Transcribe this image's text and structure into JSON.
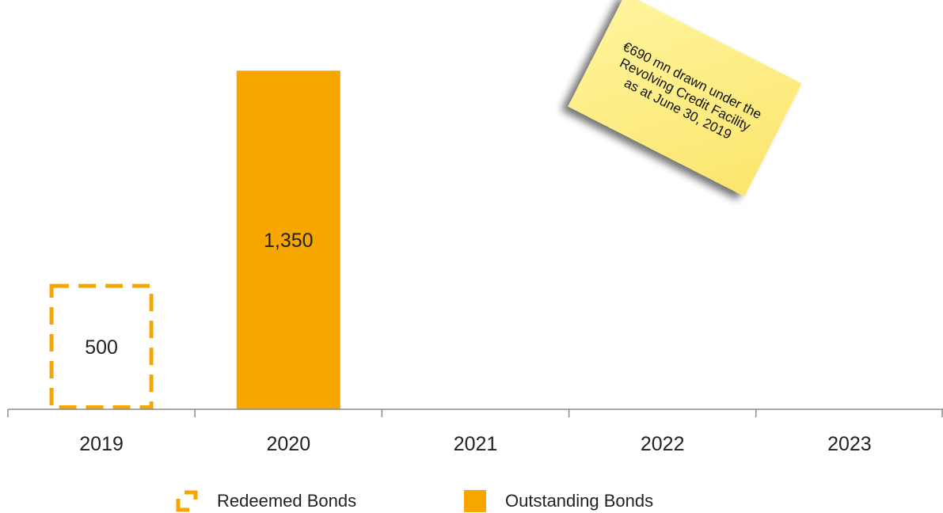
{
  "chart_data": {
    "type": "bar",
    "categories": [
      "2019",
      "2020",
      "2021",
      "2022",
      "2023"
    ],
    "series": [
      {
        "name": "Redeemed Bonds",
        "style": "dashed-outline",
        "color": "#f7a600",
        "values": [
          500,
          null,
          null,
          null,
          null
        ]
      },
      {
        "name": "Outstanding Bonds",
        "style": "solid",
        "color": "#f7a600",
        "values": [
          null,
          1350,
          null,
          null,
          null
        ]
      }
    ],
    "data_labels": [
      "500",
      "1,350"
    ],
    "title": "",
    "xlabel": "",
    "ylabel": "",
    "ylim": [
      0,
      1600
    ],
    "grid": false,
    "legend_position": "bottom-center",
    "annotation": {
      "lines": [
        "€690 mn drawn under the",
        "Revolving Credit Facility",
        "as at June 30, 2019"
      ],
      "color": "#fbe56d"
    }
  },
  "legend": {
    "redeemed_label": "Redeemed Bonds",
    "outstanding_label": "Outstanding Bonds"
  }
}
